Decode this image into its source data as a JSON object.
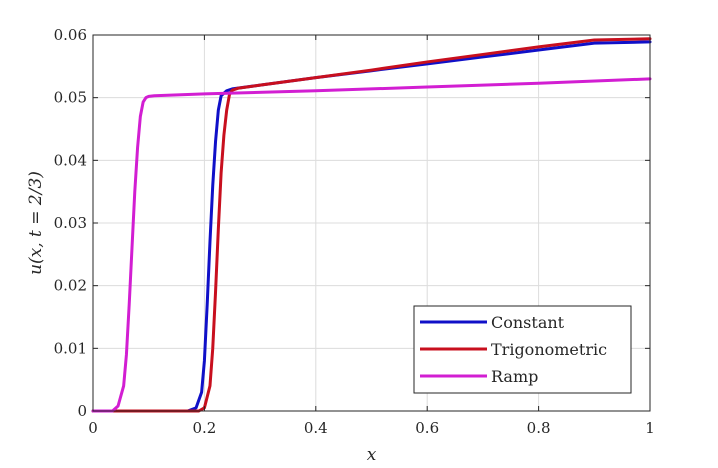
{
  "chart_data": {
    "type": "line",
    "title": "",
    "xlabel": "x",
    "ylabel": "u(x, t = 2/3)",
    "xlim": [
      0,
      1
    ],
    "ylim": [
      0,
      0.06
    ],
    "xticks": [
      "0",
      "0.2",
      "0.4",
      "0.6",
      "0.8",
      "1"
    ],
    "yticks": [
      "0",
      "0.01",
      "0.02",
      "0.03",
      "0.04",
      "0.05",
      "0.06"
    ],
    "grid": true,
    "legend_position": "bottom-right",
    "series": [
      {
        "name": "Constant",
        "color": "#1010c8",
        "x": [
          0,
          0.17,
          0.185,
          0.195,
          0.2,
          0.205,
          0.21,
          0.215,
          0.22,
          0.225,
          0.23,
          0.24,
          0.25,
          0.3,
          0.4,
          0.5,
          0.6,
          0.7,
          0.8,
          0.9,
          1.0
        ],
        "y": [
          0,
          0,
          0.0005,
          0.003,
          0.008,
          0.017,
          0.027,
          0.036,
          0.043,
          0.048,
          0.0503,
          0.0511,
          0.0514,
          0.052,
          0.0532,
          0.0543,
          0.0554,
          0.0565,
          0.0576,
          0.0587,
          0.0589
        ]
      },
      {
        "name": "Trigonometric",
        "color": "#c80f1e",
        "x": [
          0,
          0.19,
          0.2,
          0.21,
          0.215,
          0.22,
          0.225,
          0.23,
          0.235,
          0.24,
          0.245,
          0.25,
          0.26,
          0.3,
          0.4,
          0.5,
          0.6,
          0.7,
          0.8,
          0.9,
          1.0
        ],
        "y": [
          0,
          0,
          0.0005,
          0.004,
          0.01,
          0.019,
          0.029,
          0.038,
          0.044,
          0.048,
          0.0505,
          0.0512,
          0.0515,
          0.052,
          0.0532,
          0.0544,
          0.0557,
          0.0569,
          0.0581,
          0.0592,
          0.0594
        ]
      },
      {
        "name": "Ramp",
        "color": "#d21ed2",
        "x": [
          0,
          0.035,
          0.045,
          0.055,
          0.06,
          0.065,
          0.07,
          0.075,
          0.08,
          0.085,
          0.09,
          0.095,
          0.1,
          0.11,
          0.2,
          0.4,
          0.6,
          0.8,
          1.0
        ],
        "y": [
          0,
          0,
          0.0008,
          0.004,
          0.009,
          0.017,
          0.026,
          0.035,
          0.042,
          0.047,
          0.0493,
          0.05,
          0.0502,
          0.0503,
          0.0506,
          0.0511,
          0.0517,
          0.0523,
          0.053
        ]
      }
    ]
  }
}
